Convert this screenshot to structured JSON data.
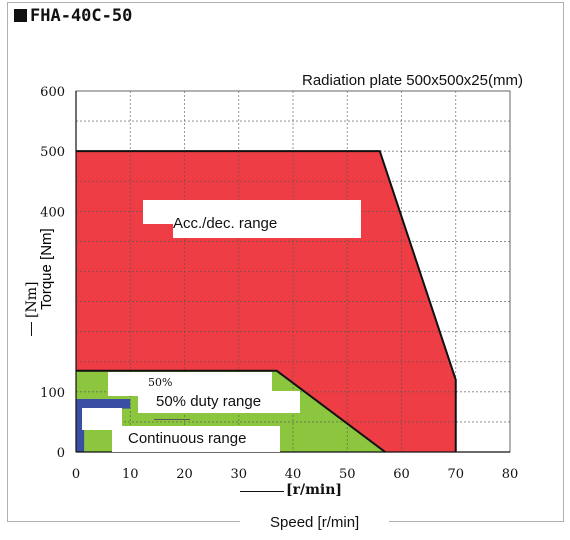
{
  "model_title": "FHA-40C-50",
  "radiation_note": "Radiation plate 500x500x25(mm)",
  "chart_data": {
    "type": "area",
    "title": "FHA-40C-50",
    "subtitle": "Radiation plate 500x500x25(mm)",
    "xlabel": "Speed [r/min]",
    "xlabel_alt": "[r/min]",
    "ylabel": "Torque [Nm]",
    "ylabel_alt": "[Nm]",
    "xlim": [
      0,
      80
    ],
    "ylim": [
      0,
      600
    ],
    "xticks": [
      0,
      10,
      20,
      30,
      40,
      50,
      60,
      70,
      80
    ],
    "yticks": [
      0,
      100,
      400,
      500,
      600
    ],
    "grid": true,
    "regions": [
      {
        "name": "Acc./dec. range",
        "color": "#ee3d45",
        "x": [
          0,
          0,
          56,
          70,
          70
        ],
        "y": [
          0,
          500,
          500,
          120,
          0
        ]
      },
      {
        "name": "50% duty range",
        "color": "#8cc63f",
        "x": [
          0,
          0,
          37,
          57,
          0
        ],
        "y": [
          0,
          135,
          135,
          0,
          0
        ]
      },
      {
        "name": "Continuous range",
        "color": "#3a4fa3",
        "x": [
          0,
          0,
          10,
          10,
          1.5,
          1.5,
          0
        ],
        "y": [
          0,
          88,
          88,
          72,
          72,
          0,
          0
        ]
      }
    ],
    "annotations": [
      "Acc./dec. range",
      "50%",
      "50% duty range",
      "Continuous range"
    ]
  }
}
